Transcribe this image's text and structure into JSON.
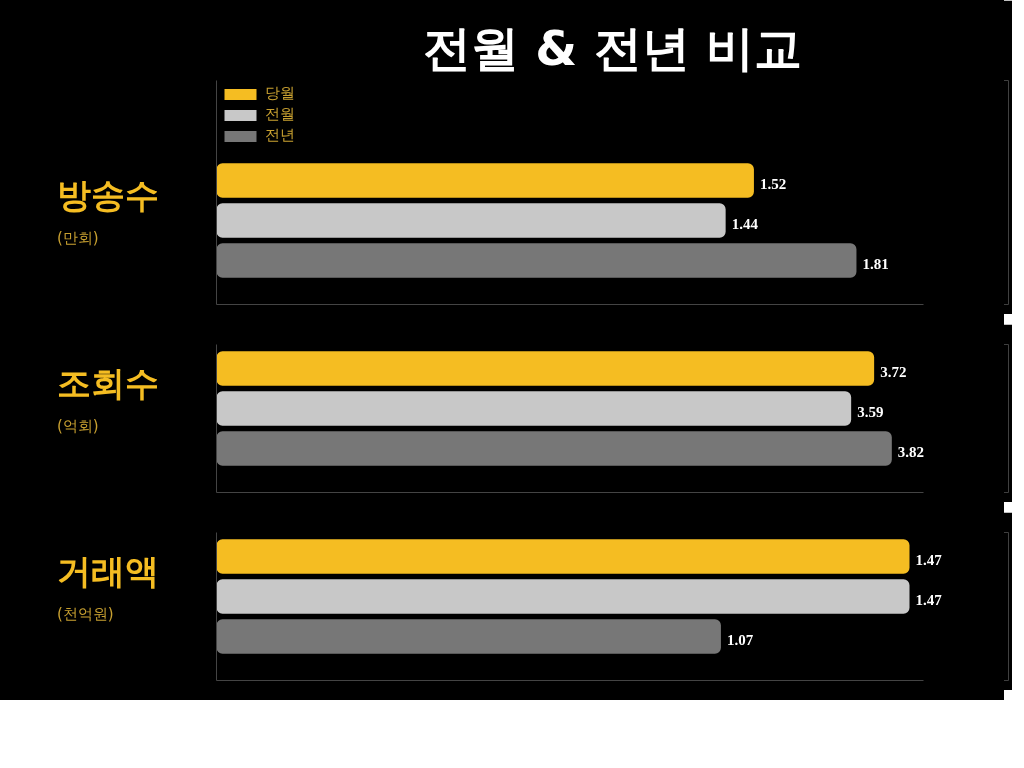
{
  "chart_data": [
    {
      "type": "bar",
      "orientation": "horizontal",
      "title": "전월 & 전년 비교",
      "ylabel": "방송수 (만회)",
      "categories": [
        null
      ],
      "xlim": [
        0,
        2
      ],
      "data_labels": true,
      "legend": "top left",
      "series": [
        {
          "name": "당월",
          "color": "#f5bd22",
          "values": [
            1.52
          ]
        },
        {
          "name": "전월",
          "color": "#c8c8c8",
          "values": [
            1.44
          ]
        },
        {
          "name": "전년",
          "color": "#777777",
          "values": [
            1.81
          ]
        }
      ]
    },
    {
      "type": "bar",
      "orientation": "horizontal",
      "ylabel": "조회수 (억회)",
      "categories": [
        null
      ],
      "xlim": [
        0,
        4
      ],
      "data_labels": true,
      "series": [
        {
          "color": "#f5bd22",
          "values": [
            3.72
          ]
        },
        {
          "color": "#c8c8c8",
          "values": [
            3.59
          ]
        },
        {
          "color": "#777777",
          "values": [
            3.82
          ]
        }
      ]
    },
    {
      "type": "bar",
      "orientation": "horizontal",
      "ylabel": "거래액 (천억원)",
      "categories": [
        null
      ],
      "xlim": [
        0,
        1.5
      ],
      "data_labels": true,
      "series": [
        {
          "color": "#f5bd22",
          "values": [
            1.47
          ]
        },
        {
          "color": "#c8c8c8",
          "values": [
            1.47
          ]
        },
        {
          "color": "#777777",
          "values": [
            1.07
          ]
        }
      ]
    }
  ]
}
